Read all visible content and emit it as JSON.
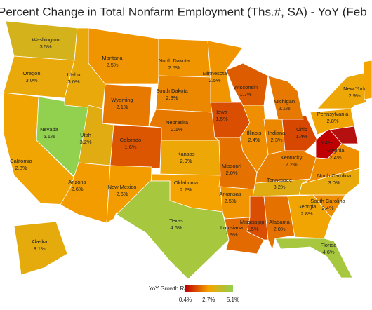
{
  "title": "Percent Change in Total Nonfarm Employment (Ths.#, SA) - YoY (Feb",
  "legend": {
    "title": "YoY Growth Rate",
    "ticks": [
      {
        "value": 0.4,
        "label": "0.4%"
      },
      {
        "value": 2.7,
        "label": "2.7%"
      },
      {
        "value": 5.1,
        "label": "5.1%"
      }
    ],
    "colors": [
      "#c00000",
      "#f5a300",
      "#92d050"
    ]
  },
  "states": [
    {
      "name": "Washington",
      "value": 3.5,
      "value_label": "3.5%"
    },
    {
      "name": "Oregon",
      "value": 3.0,
      "value_label": "3.0%"
    },
    {
      "name": "California",
      "value": 2.8,
      "value_label": "2.8%"
    },
    {
      "name": "Nevada",
      "value": 5.1,
      "value_label": "5.1%"
    },
    {
      "name": "Idaho",
      "value": 3.0,
      "value_label": "3.0%"
    },
    {
      "name": "Montana",
      "value": 2.5,
      "value_label": "2.5%"
    },
    {
      "name": "Wyoming",
      "value": 2.1,
      "value_label": "2.1%"
    },
    {
      "name": "Utah",
      "value": 3.2,
      "value_label": "3.2%"
    },
    {
      "name": "Colorado",
      "value": 1.6,
      "value_label": "1.6%"
    },
    {
      "name": "Arizona",
      "value": 2.6,
      "value_label": "2.6%"
    },
    {
      "name": "New Mexico",
      "value": 2.6,
      "value_label": "2.6%"
    },
    {
      "name": "North Dakota",
      "value": 2.5,
      "value_label": "2.5%"
    },
    {
      "name": "South Dakota",
      "value": 2.3,
      "value_label": "2.3%"
    },
    {
      "name": "Nebraska",
      "value": 2.1,
      "value_label": "2.1%"
    },
    {
      "name": "Kansas",
      "value": 2.9,
      "value_label": "2.9%"
    },
    {
      "name": "Oklahoma",
      "value": 2.7,
      "value_label": "2.7%"
    },
    {
      "name": "Texas",
      "value": 4.6,
      "value_label": "4.6%"
    },
    {
      "name": "Minnesota",
      "value": 2.5,
      "value_label": "2.5%"
    },
    {
      "name": "Iowa",
      "value": 1.5,
      "value_label": "1.5%"
    },
    {
      "name": "Wisconsin",
      "value": 1.7,
      "value_label": "1.7%"
    },
    {
      "name": "Illinois",
      "value": 2.4,
      "value_label": "2.4%"
    },
    {
      "name": "Missouri",
      "value": 2.0,
      "value_label": "2.0%"
    },
    {
      "name": "Arkansas",
      "value": 2.5,
      "value_label": "2.5%"
    },
    {
      "name": "Louisiana",
      "value": 1.9,
      "value_label": "1.9%"
    },
    {
      "name": "Mississippi",
      "value": 1.5,
      "value_label": "1.5%"
    },
    {
      "name": "Alabama",
      "value": 2.0,
      "value_label": "2.0%"
    },
    {
      "name": "Georgia",
      "value": 2.8,
      "value_label": "2.8%"
    },
    {
      "name": "Florida",
      "value": 4.6,
      "value_label": "4.6%"
    },
    {
      "name": "South Carolina",
      "value": 2.4,
      "value_label": "2.4%"
    },
    {
      "name": "North Carolina",
      "value": 3.0,
      "value_label": "3.0%"
    },
    {
      "name": "Tennessee",
      "value": 3.2,
      "value_label": "3.2%"
    },
    {
      "name": "Kentucky",
      "value": 2.2,
      "value_label": "2.2%"
    },
    {
      "name": "Indiana",
      "value": 2.3,
      "value_label": "2.3%"
    },
    {
      "name": "Ohio",
      "value": 1.4,
      "value_label": "1.4%"
    },
    {
      "name": "Michigan",
      "value": 2.1,
      "value_label": "2.1%"
    },
    {
      "name": null,
      "value": 0.4,
      "value_label": "0.4%"
    },
    {
      "name": "Virginia",
      "value": 2.4,
      "value_label": "2.4%"
    },
    {
      "name": "Pennsylvania",
      "value": 2.8,
      "value_label": "2.8%"
    },
    {
      "name": "New York",
      "value": 2.9,
      "value_label": "2.9%"
    },
    {
      "name": "Alaska",
      "value": 3.1,
      "value_label": "3.1%"
    }
  ]
}
